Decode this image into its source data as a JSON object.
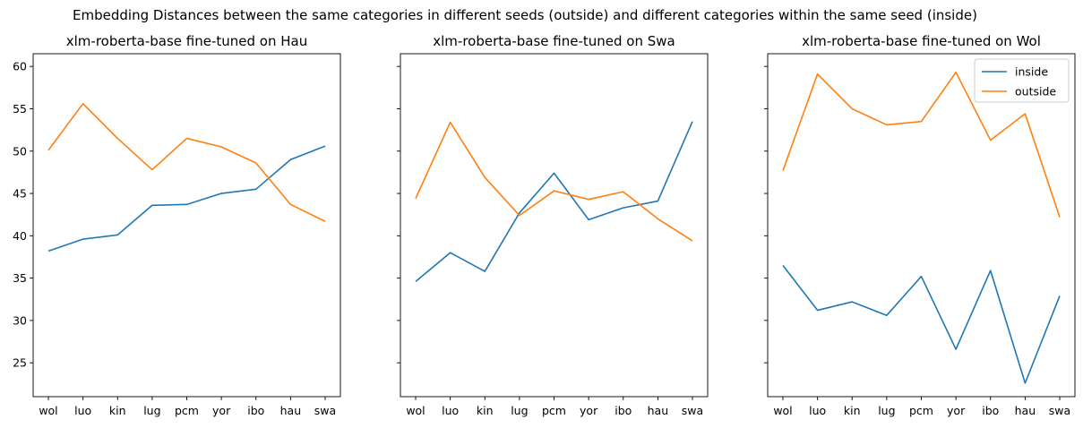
{
  "figure": {
    "suptitle": "Embedding Distances between the same categories in different seeds (outside) and different categories within the same seed (inside)"
  },
  "chart_data": [
    {
      "type": "line",
      "title": "xlm-roberta-base fine-tuned on Hau",
      "xlabel": "",
      "ylabel": "",
      "categories": [
        "wol",
        "luo",
        "kin",
        "lug",
        "pcm",
        "yor",
        "ibo",
        "hau",
        "swa"
      ],
      "ylim": [
        21,
        61.5
      ],
      "yticks": [
        25,
        30,
        35,
        40,
        45,
        50,
        55,
        60
      ],
      "legend": null,
      "series": [
        {
          "name": "inside",
          "color": "#1f77b4",
          "values": [
            38.2,
            39.6,
            40.1,
            43.6,
            43.7,
            45.0,
            45.5,
            49.0,
            50.6
          ]
        },
        {
          "name": "outside",
          "color": "#ff7f0e",
          "values": [
            50.1,
            55.6,
            51.5,
            47.8,
            51.5,
            50.5,
            48.6,
            43.7,
            41.7
          ]
        }
      ]
    },
    {
      "type": "line",
      "title": "xlm-roberta-base fine-tuned on Swa",
      "xlabel": "",
      "ylabel": "",
      "categories": [
        "wol",
        "luo",
        "kin",
        "lug",
        "pcm",
        "yor",
        "ibo",
        "hau",
        "swa"
      ],
      "ylim": [
        21,
        61.5
      ],
      "yticks": [
        25,
        30,
        35,
        40,
        45,
        50,
        55,
        60
      ],
      "legend": null,
      "series": [
        {
          "name": "inside",
          "color": "#1f77b4",
          "values": [
            34.6,
            38.0,
            35.8,
            42.7,
            47.4,
            41.9,
            43.3,
            44.1,
            53.5
          ]
        },
        {
          "name": "outside",
          "color": "#ff7f0e",
          "values": [
            44.4,
            53.4,
            46.9,
            42.4,
            45.3,
            44.3,
            45.2,
            42.0,
            39.4
          ]
        }
      ]
    },
    {
      "type": "line",
      "title": "xlm-roberta-base fine-tuned on Wol",
      "xlabel": "",
      "ylabel": "",
      "categories": [
        "wol",
        "luo",
        "kin",
        "lug",
        "pcm",
        "yor",
        "ibo",
        "hau",
        "swa"
      ],
      "ylim": [
        21,
        61.5
      ],
      "yticks": [
        25,
        30,
        35,
        40,
        45,
        50,
        55,
        60
      ],
      "legend": "top-right",
      "series": [
        {
          "name": "inside",
          "color": "#1f77b4",
          "values": [
            36.5,
            31.2,
            32.2,
            30.6,
            35.2,
            26.6,
            35.9,
            22.6,
            32.9
          ]
        },
        {
          "name": "outside",
          "color": "#ff7f0e",
          "values": [
            47.7,
            59.1,
            55.0,
            53.1,
            53.5,
            59.3,
            51.3,
            54.4,
            42.2
          ]
        }
      ]
    }
  ]
}
